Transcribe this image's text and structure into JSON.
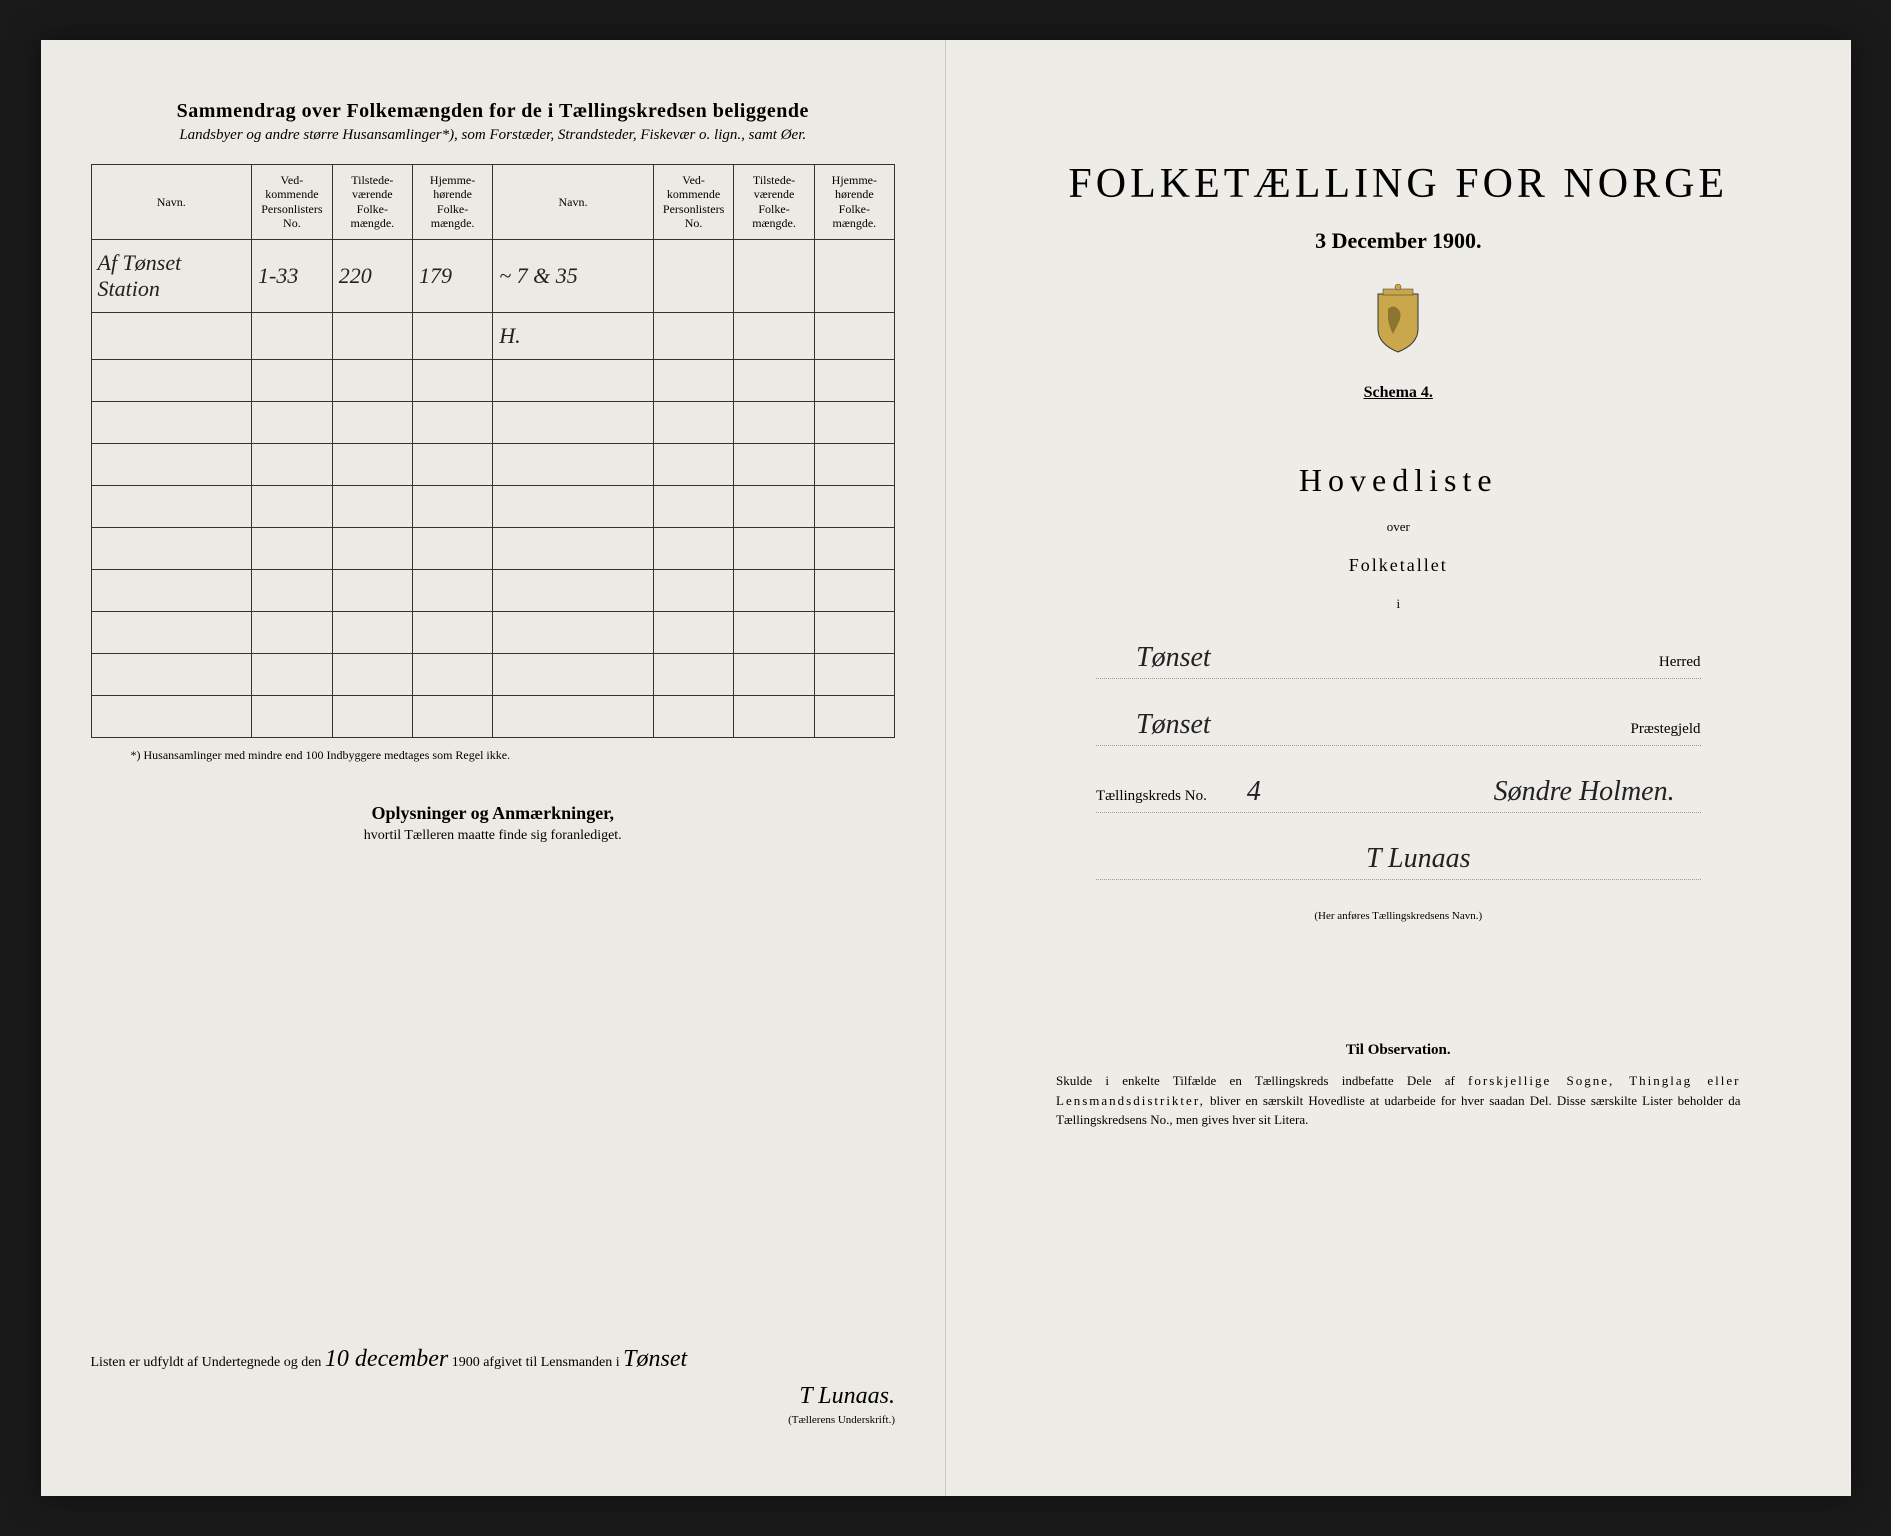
{
  "left_page": {
    "summary_title": "Sammendrag over Folkemængden for de i Tællingskredsen beliggende",
    "summary_subtitle": "Landsbyer og andre større Husansamlinger*), som Forstæder, Strandsteder, Fiskevær o. lign., samt Øer.",
    "table": {
      "headers": {
        "navn": "Navn.",
        "vedkommende": "Ved-kommende Personlisters No.",
        "tilstede": "Tilstede-værende Folke-mængde.",
        "hjemme": "Hjemme-hørende Folke-mængde."
      },
      "rows": [
        {
          "navn": "Af Tønset Station",
          "vedkommende": "1-33",
          "tilstede": "220",
          "hjemme": "179",
          "navn2": "~ 7 & 35",
          "vedkommende2": "",
          "tilstede2": "",
          "hjemme2": ""
        },
        {
          "navn": "",
          "vedkommende": "",
          "tilstede": "",
          "hjemme": "",
          "navn2": "H.",
          "vedkommende2": "",
          "tilstede2": "",
          "hjemme2": ""
        }
      ],
      "empty_rows": 9
    },
    "footnote": "*) Husansamlinger med mindre end 100 Indbyggere medtages som Regel ikke.",
    "oplysninger_title": "Oplysninger og Anmærkninger,",
    "oplysninger_sub": "hvortil Tælleren maatte finde sig foranlediget.",
    "signature": {
      "line_prefix": "Listen er udfyldt af Undertegnede og den",
      "date": "10 december",
      "year": "1900",
      "line_middle": "afgivet til Lensmanden i",
      "place": "Tønset",
      "name": "T Lunaas.",
      "label": "(Tællerens Underskrift.)"
    }
  },
  "right_page": {
    "title": "FOLKETÆLLING FOR NORGE",
    "date": "3 December 1900.",
    "schema": "Schema 4.",
    "hovedliste": "Hovedliste",
    "over": "over",
    "folketallet": "Folketallet",
    "i": "i",
    "herred": {
      "value": "Tønset",
      "label": "Herred"
    },
    "praestegjeld": {
      "value": "Tønset",
      "label": "Præstegjeld"
    },
    "taellingskreds": {
      "prefix": "Tællingskreds No.",
      "number": "4",
      "name": "Søndre Holmen."
    },
    "taeller_name": "T Lunaas",
    "anfores": "(Her anføres Tællingskredsens Navn.)",
    "observation": {
      "title": "Til Observation.",
      "text_part1": "Skulde i enkelte Tilfælde en Tællingskreds indbefatte Dele af",
      "text_spaced1": "forskjellige Sogne, Thinglag eller Lensmandsdistrikter,",
      "text_part2": "bliver en særskilt Hovedliste at udarbeide for hver saadan Del. Disse særskilte Lister beholder da Tællingskredsens No., men gives hver sit Litera."
    }
  },
  "colors": {
    "background": "#1a1a1a",
    "paper": "#eceae4",
    "text": "#1a1a1a",
    "border": "#333333"
  }
}
